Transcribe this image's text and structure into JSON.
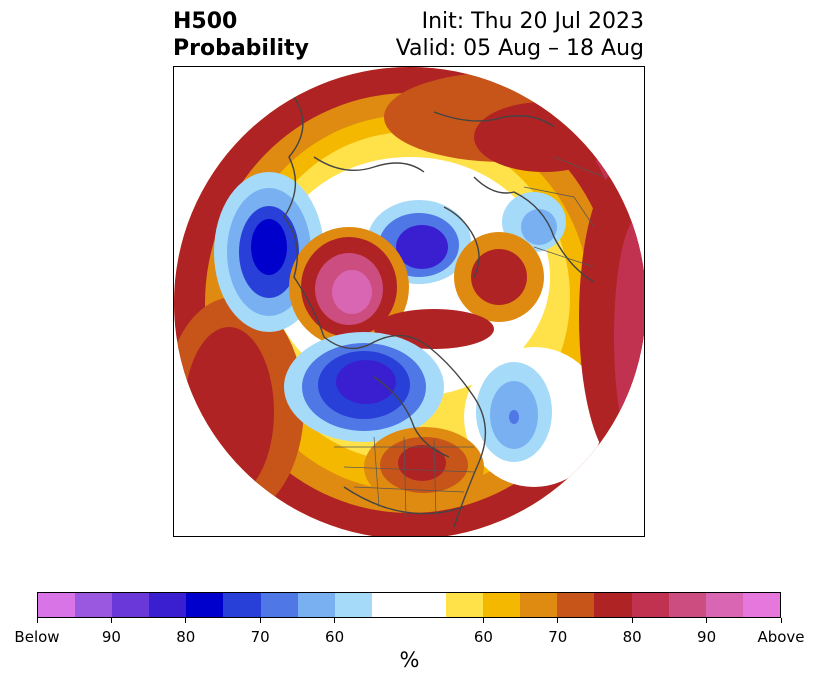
{
  "title": {
    "left_line1": "H500",
    "left_line2": "Probability",
    "right_line1": "Init: Thu 20 Jul 2023",
    "right_line2": "Valid: 05 Aug – 18 Aug"
  },
  "colorbar": {
    "colors": [
      "#d874e6",
      "#9a57e0",
      "#6a38d8",
      "#3a1fd1",
      "#0000cc",
      "#2840d8",
      "#4f77e6",
      "#78b0f2",
      "#a6daf9",
      "#ffffff",
      "#ffe14a",
      "#f4b800",
      "#df8a10",
      "#c75519",
      "#b02324",
      "#c13250",
      "#cc4d7f",
      "#d966b3",
      "#e677dc"
    ],
    "labels": [
      "Below",
      "90",
      "80",
      "70",
      "60",
      "60",
      "70",
      "80",
      "90",
      "Above"
    ],
    "unit": "%"
  },
  "map": {
    "features": [
      "below-normal anomaly centers",
      "above-normal anomaly centers",
      "coastlines",
      "state and country borders"
    ]
  }
}
